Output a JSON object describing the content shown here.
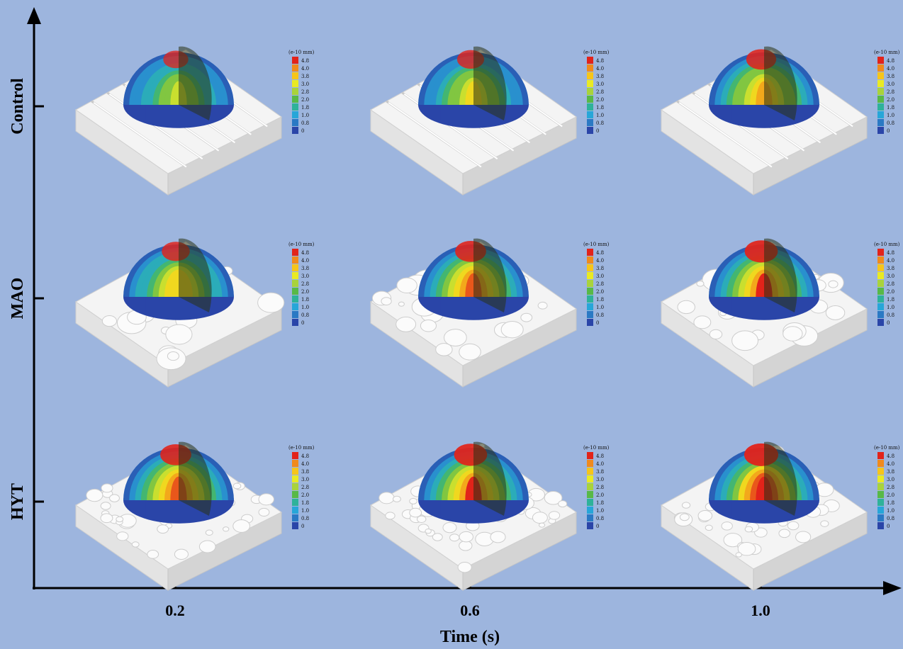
{
  "figure": {
    "x_axis": {
      "label": "Time (s)",
      "ticks": [
        "0.2",
        "0.6",
        "1.0"
      ]
    },
    "y_axis": {
      "rows": [
        "Control",
        "MAO",
        "HYT"
      ]
    },
    "legend": {
      "unit": "(e-10 mm)",
      "levels": [
        "4.8",
        "4.0",
        "3.8",
        "3.0",
        "2.8",
        "2.0",
        "1.8",
        "1.0",
        "0.8",
        "0"
      ],
      "colors": [
        "#e2231a",
        "#f08a1c",
        "#f6c51a",
        "#e9ea23",
        "#a9d33b",
        "#58b947",
        "#2eb29a",
        "#27a6d8",
        "#2a79c4",
        "#2a45a8"
      ]
    },
    "panels": [
      {
        "row": "Control",
        "time": "0.2",
        "surface": "grooved",
        "peak": 0.55
      },
      {
        "row": "Control",
        "time": "0.6",
        "surface": "grooved",
        "peak": 0.65
      },
      {
        "row": "Control",
        "time": "1.0",
        "surface": "grooved",
        "peak": 0.8
      },
      {
        "row": "MAO",
        "time": "0.2",
        "surface": "porous",
        "peak": 0.7
      },
      {
        "row": "MAO",
        "time": "0.6",
        "surface": "porous",
        "peak": 0.85
      },
      {
        "row": "MAO",
        "time": "1.0",
        "surface": "porous",
        "peak": 0.95
      },
      {
        "row": "HYT",
        "time": "0.2",
        "surface": "rough",
        "peak": 0.85
      },
      {
        "row": "HYT",
        "time": "0.6",
        "surface": "rough",
        "peak": 0.95
      },
      {
        "row": "HYT",
        "time": "1.0",
        "surface": "rough",
        "peak": 1.0
      }
    ],
    "colors": {
      "background": "#9db5de",
      "axis": "#000000",
      "substrate": "#f4f4f4"
    }
  }
}
